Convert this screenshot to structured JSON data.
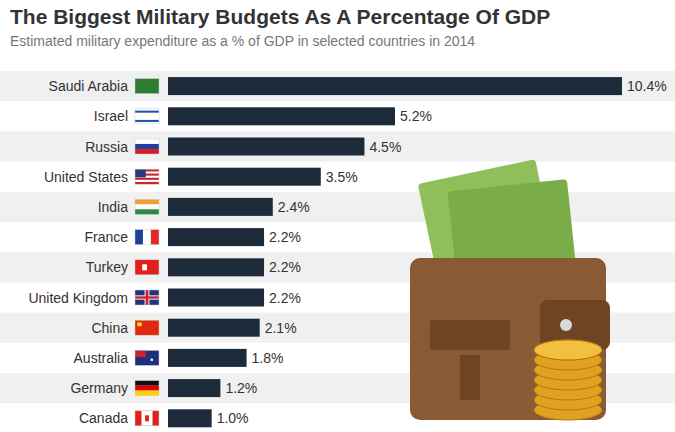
{
  "chart_data": {
    "type": "bar",
    "orientation": "horizontal",
    "title": "The Biggest Military Budgets As A Percentage Of GDP",
    "subtitle": "Estimated military expenditure as a % of GDP in selected countries in 2014",
    "categories": [
      "Saudi Arabia",
      "Israel",
      "Russia",
      "United States",
      "India",
      "France",
      "Turkey",
      "United Kingdom",
      "China",
      "Australia",
      "Germany",
      "Canada"
    ],
    "values": [
      10.4,
      5.2,
      4.5,
      3.5,
      2.4,
      2.2,
      2.2,
      2.2,
      2.1,
      1.8,
      1.2,
      1.0
    ],
    "value_labels": [
      "10.4%",
      "5.2%",
      "4.5%",
      "3.5%",
      "2.4%",
      "2.2%",
      "2.2%",
      "2.2%",
      "2.1%",
      "1.8%",
      "1.2%",
      "1.0%"
    ],
    "color": "#1c2a3a",
    "xlim": [
      0,
      10.4
    ],
    "data_labels": true,
    "tick_labels": "y"
  }
}
